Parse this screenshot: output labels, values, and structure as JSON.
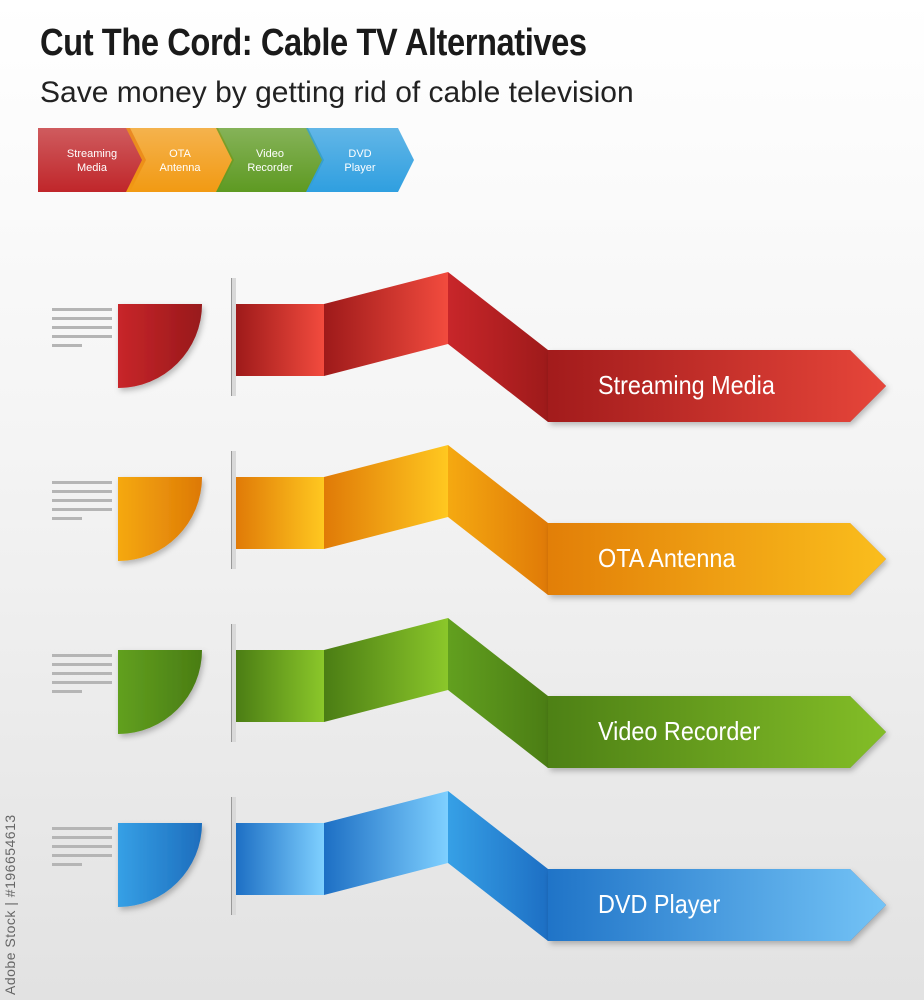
{
  "title": "Cut The Cord: Cable TV Alternatives",
  "subtitle": "Save money by getting rid of cable television",
  "legend": [
    {
      "label": "Streaming\nMedia",
      "color": "#c0262a"
    },
    {
      "label": "OTA\nAntenna",
      "color": "#f29a13"
    },
    {
      "label": "Video\nRecorder",
      "color": "#5e9a22"
    },
    {
      "label": "DVD\nPlayer",
      "color": "#2f9fe0"
    }
  ],
  "rows": [
    {
      "label": "Streaming Media",
      "colors": {
        "dark": "#9e1a1a",
        "mid": "#c8262a",
        "light": "#f24b3e",
        "darkest": "#7e1212"
      }
    },
    {
      "label": "OTA Antenna",
      "colors": {
        "dark": "#e07a07",
        "mid": "#f5a911",
        "light": "#ffc820",
        "darkest": "#d06000"
      }
    },
    {
      "label": "Video Recorder",
      "colors": {
        "dark": "#4b7d14",
        "mid": "#62a01f",
        "light": "#8bc72a",
        "darkest": "#3d6a0d"
      }
    },
    {
      "label": "DVD Player",
      "colors": {
        "dark": "#1d6fc4",
        "mid": "#36a0e6",
        "light": "#7fd0ff",
        "darkest": "#1053a8"
      }
    }
  ],
  "watermark": "Adobe Stock | #196654613"
}
